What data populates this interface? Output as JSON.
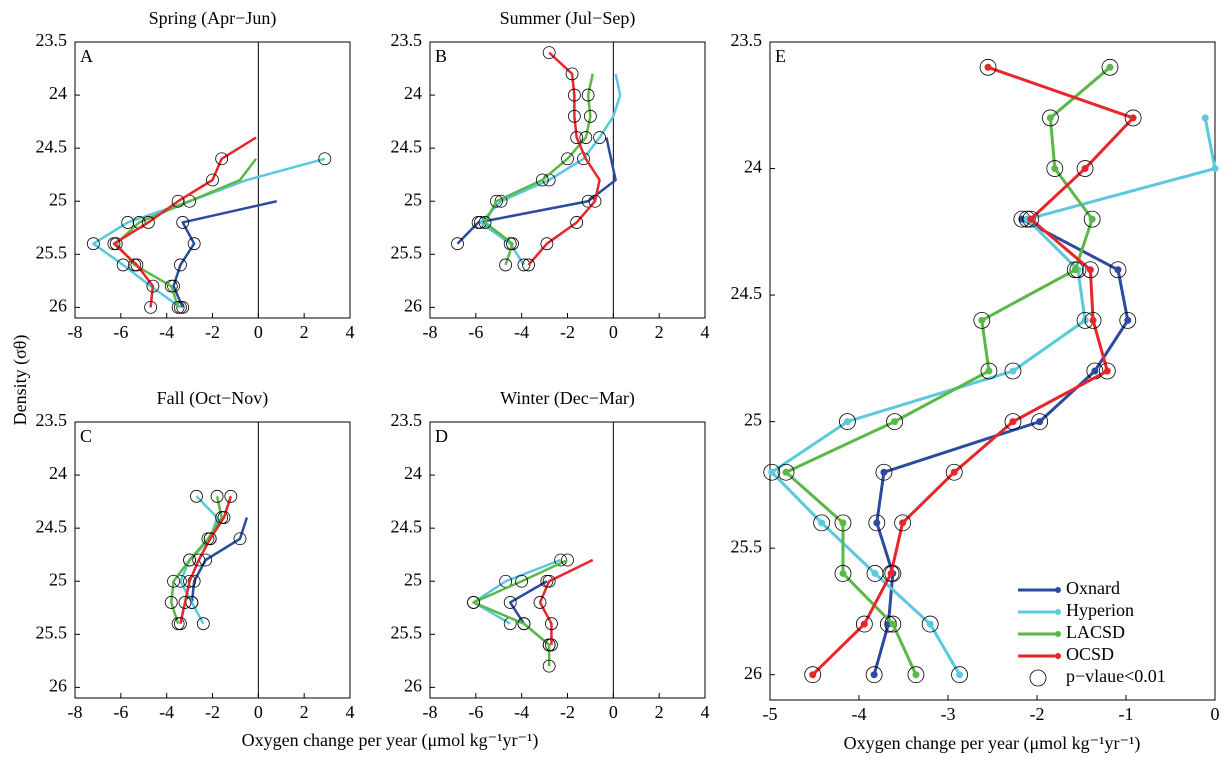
{
  "chart_data": [
    {
      "type": "line",
      "panel": "A",
      "title": "Spring (Apr−Jun)",
      "ylabel": "Density (σθ)",
      "xlim": [
        -8,
        4
      ],
      "xticks": [
        -8,
        -6,
        -4,
        -2,
        0,
        2,
        4
      ],
      "ylim": [
        23.5,
        26.1
      ],
      "yticks": [
        23.5,
        24,
        24.5,
        25,
        25.5,
        26
      ],
      "zero_line": true,
      "markers": false,
      "series": [
        {
          "color": "#2b4ba0",
          "x": [
            0.8,
            -3.3,
            -2.8,
            -3.4,
            -3.7,
            -3.3
          ],
          "values": [
            25.0,
            25.2,
            25.4,
            25.6,
            25.8,
            26.0
          ],
          "significant": [
            false,
            true,
            true,
            true,
            true,
            true
          ]
        },
        {
          "color": "#5bc8dc",
          "x": [
            2.9,
            -0.5,
            -3.0,
            -5.7,
            -7.2,
            -5.9,
            -4.7,
            -3.4
          ],
          "values": [
            24.6,
            24.8,
            25.0,
            25.2,
            25.4,
            25.6,
            25.8,
            26.0
          ],
          "significant": [
            true,
            false,
            false,
            true,
            true,
            true,
            false,
            true
          ]
        },
        {
          "color": "#5ab946",
          "x": [
            -0.1,
            -0.8,
            -3.0,
            -5.2,
            -6.2,
            -5.4,
            -3.8,
            -3.5
          ],
          "values": [
            24.6,
            24.8,
            25.0,
            25.2,
            25.4,
            25.6,
            25.8,
            26.0
          ],
          "significant": [
            false,
            false,
            true,
            true,
            true,
            true,
            true,
            true
          ]
        },
        {
          "color": "#e8262a",
          "x": [
            -0.1,
            -1.6,
            -2.0,
            -3.5,
            -4.8,
            -6.3,
            -5.3,
            -4.6,
            -4.7
          ],
          "values": [
            24.4,
            24.6,
            24.8,
            25.0,
            25.2,
            25.4,
            25.6,
            25.8,
            26.0
          ],
          "significant": [
            false,
            true,
            true,
            true,
            true,
            true,
            true,
            true,
            true
          ]
        }
      ]
    },
    {
      "type": "line",
      "panel": "B",
      "title": "Summer (Jul−Sep)",
      "xlim": [
        -8,
        4
      ],
      "xticks": [
        -8,
        -6,
        -4,
        -2,
        0,
        2,
        4
      ],
      "ylim": [
        23.5,
        26.1
      ],
      "yticks": [
        23.5,
        24,
        24.5,
        25,
        25.5,
        26
      ],
      "zero_line": true,
      "markers": false,
      "series": [
        {
          "color": "#2b4ba0",
          "x": [
            -0.3,
            -0.1,
            0.1,
            -1.1,
            -5.9,
            -6.8
          ],
          "values": [
            24.4,
            24.6,
            24.8,
            25.0,
            25.2,
            25.4
          ],
          "significant": [
            false,
            false,
            false,
            true,
            true,
            true
          ]
        },
        {
          "color": "#5bc8dc",
          "x": [
            0.1,
            0.3,
            0.0,
            -0.6,
            -1.3,
            -2.8,
            -4.9,
            -5.8,
            -4.5,
            -3.9
          ],
          "values": [
            23.8,
            24.0,
            24.2,
            24.4,
            24.6,
            24.8,
            25.0,
            25.2,
            25.4,
            25.6
          ],
          "significant": [
            false,
            false,
            false,
            true,
            true,
            true,
            true,
            true,
            true,
            true
          ]
        },
        {
          "color": "#5ab946",
          "x": [
            -0.9,
            -1.1,
            -1.0,
            -1.2,
            -2.0,
            -3.1,
            -5.1,
            -5.6,
            -4.4,
            -4.7
          ],
          "values": [
            23.8,
            24.0,
            24.2,
            24.4,
            24.6,
            24.8,
            25.0,
            25.2,
            25.4,
            25.6
          ],
          "significant": [
            false,
            true,
            true,
            true,
            true,
            true,
            true,
            true,
            true,
            true
          ]
        },
        {
          "color": "#e8262a",
          "x": [
            -2.8,
            -1.8,
            -1.7,
            -1.7,
            -1.6,
            -1.2,
            -0.6,
            -0.8,
            -1.6,
            -2.9,
            -3.7
          ],
          "values": [
            23.6,
            23.8,
            24.0,
            24.2,
            24.4,
            24.6,
            24.8,
            25.0,
            25.2,
            25.4,
            25.6
          ],
          "significant": [
            true,
            true,
            true,
            true,
            true,
            false,
            false,
            true,
            true,
            true,
            true
          ]
        }
      ]
    },
    {
      "type": "line",
      "panel": "C",
      "title": "Fall (Oct−Nov)",
      "xlabel": "Oxygen change per year (μmol kg⁻¹yr⁻¹)",
      "xlim": [
        -8,
        4
      ],
      "xticks": [
        -8,
        -6,
        -4,
        -2,
        0,
        2,
        4
      ],
      "ylim": [
        23.5,
        26.1
      ],
      "yticks": [
        23.5,
        24,
        24.5,
        25,
        25.5,
        26
      ],
      "zero_line": true,
      "markers": false,
      "series": [
        {
          "color": "#2b4ba0",
          "x": [
            -0.5,
            -0.8,
            -2.3,
            -2.8,
            -2.9
          ],
          "values": [
            24.4,
            24.6,
            24.8,
            25.0,
            25.2
          ],
          "significant": [
            false,
            true,
            true,
            true,
            true
          ]
        },
        {
          "color": "#5bc8dc",
          "x": [
            -2.7,
            -1.8,
            -2.1,
            -3.0,
            -3.4,
            -2.9,
            -2.4
          ],
          "values": [
            24.2,
            24.4,
            24.6,
            24.8,
            25.0,
            25.2,
            25.4
          ],
          "significant": [
            true,
            false,
            true,
            true,
            true,
            true,
            true
          ]
        },
        {
          "color": "#5ab946",
          "x": [
            -1.8,
            -1.6,
            -2.2,
            -3.0,
            -3.7,
            -3.8,
            -3.5
          ],
          "values": [
            24.2,
            24.4,
            24.6,
            24.8,
            25.0,
            25.2,
            25.4
          ],
          "significant": [
            true,
            true,
            true,
            true,
            true,
            true,
            true
          ]
        },
        {
          "color": "#e8262a",
          "x": [
            -1.2,
            -1.5,
            -2.1,
            -2.6,
            -3.0,
            -3.2,
            -3.4
          ],
          "values": [
            24.2,
            24.4,
            24.6,
            24.8,
            25.0,
            25.2,
            25.4
          ],
          "significant": [
            true,
            true,
            true,
            true,
            true,
            true,
            true
          ]
        }
      ]
    },
    {
      "type": "line",
      "panel": "D",
      "title": "Winter (Dec−Mar)",
      "xlim": [
        -8,
        4
      ],
      "xticks": [
        -8,
        -6,
        -4,
        -2,
        0,
        2,
        4
      ],
      "ylim": [
        23.5,
        26.1
      ],
      "yticks": [
        23.5,
        24,
        24.5,
        25,
        25.5,
        26
      ],
      "zero_line": true,
      "markers": false,
      "series": [
        {
          "color": "#2b4ba0",
          "x": [
            -2.9,
            -4.5,
            -3.9,
            -2.8
          ],
          "values": [
            25.0,
            25.2,
            25.4,
            25.6
          ],
          "significant": [
            true,
            true,
            true,
            true
          ]
        },
        {
          "color": "#5bc8dc",
          "x": [
            -2.3,
            -4.7,
            -6.1,
            -4.5
          ],
          "values": [
            24.8,
            25.0,
            25.2,
            25.4
          ],
          "significant": [
            true,
            true,
            true,
            true
          ]
        },
        {
          "color": "#5ab946",
          "x": [
            -2.0,
            -4.0,
            -6.1,
            -3.9,
            -2.8,
            -2.8
          ],
          "values": [
            24.8,
            25.0,
            25.2,
            25.4,
            25.6,
            25.8
          ],
          "significant": [
            true,
            true,
            true,
            true,
            true,
            true
          ]
        },
        {
          "color": "#e8262a",
          "x": [
            -0.9,
            -2.8,
            -3.2,
            -2.7,
            -2.7
          ],
          "values": [
            24.8,
            25.0,
            25.2,
            25.4,
            25.6
          ],
          "significant": [
            false,
            true,
            true,
            true,
            true
          ]
        }
      ]
    },
    {
      "type": "line",
      "panel": "E",
      "xlabel": "Oxygen change per year (μmol kg⁻¹yr⁻¹)",
      "xlim": [
        -5,
        0
      ],
      "xticks": [
        -5,
        -4,
        -3,
        -2,
        -1,
        0
      ],
      "ylim": [
        23.5,
        26.1
      ],
      "yticks": [
        23.5,
        24,
        24.5,
        25,
        25.5,
        26
      ],
      "zero_line": false,
      "markers": true,
      "legend": "lower right",
      "significance_label": "p−vlaue<0.01",
      "series": [
        {
          "name": "Oxnard",
          "color": "#2b4ba0",
          "x": [
            -2.17,
            -1.09,
            -0.98,
            -1.35,
            -1.97,
            -3.72,
            -3.8,
            -3.62,
            -3.67,
            -3.83
          ],
          "values": [
            24.2,
            24.4,
            24.6,
            24.8,
            25.0,
            25.2,
            25.4,
            25.6,
            25.8,
            26.0
          ],
          "significant": [
            true,
            true,
            true,
            true,
            true,
            true,
            true,
            true,
            true,
            true
          ]
        },
        {
          "name": "Hyperion",
          "color": "#5bc8dc",
          "x": [
            -0.11,
            0,
            -2.11,
            -1.54,
            -1.46,
            -2.27,
            -4.13,
            -4.98,
            -4.42,
            -3.82,
            -3.2,
            -2.87
          ],
          "values": [
            23.8,
            24.0,
            24.2,
            24.4,
            24.6,
            24.8,
            25.0,
            25.2,
            25.4,
            25.6,
            25.8,
            26.0
          ],
          "significant": [
            false,
            false,
            true,
            true,
            true,
            true,
            true,
            true,
            true,
            true,
            true,
            true
          ]
        },
        {
          "name": "LACSD",
          "color": "#5ab946",
          "x": [
            -1.18,
            -1.85,
            -1.8,
            -1.38,
            -1.57,
            -2.62,
            -2.54,
            -3.6,
            -4.82,
            -4.18,
            -4.18,
            -3.62,
            -3.36
          ],
          "values": [
            23.6,
            23.8,
            24.0,
            24.2,
            24.4,
            24.6,
            24.8,
            25.0,
            25.2,
            25.4,
            25.6,
            25.8,
            26.0
          ],
          "significant": [
            true,
            true,
            true,
            true,
            true,
            true,
            true,
            true,
            true,
            true,
            true,
            true,
            true
          ]
        },
        {
          "name": "OCSD",
          "color": "#e8262a",
          "x": [
            -2.55,
            -0.92,
            -1.46,
            -2.07,
            -1.4,
            -1.37,
            -1.21,
            -2.27,
            -2.93,
            -3.51,
            -3.64,
            -3.94,
            -4.52
          ],
          "values": [
            23.6,
            23.8,
            24.0,
            24.2,
            24.4,
            24.6,
            24.8,
            25.0,
            25.2,
            25.4,
            25.6,
            25.8,
            26.0
          ],
          "significant": [
            true,
            true,
            true,
            true,
            true,
            true,
            true,
            true,
            true,
            true,
            true,
            true,
            true
          ]
        }
      ]
    }
  ]
}
